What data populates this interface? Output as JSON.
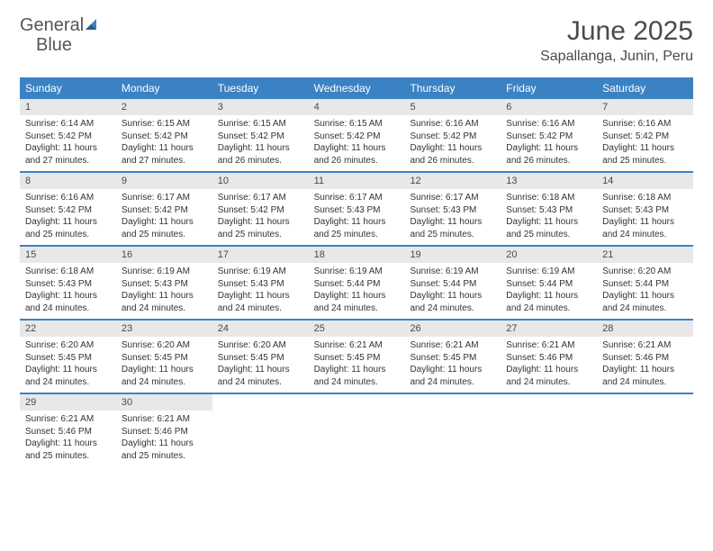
{
  "logo": {
    "text1": "General",
    "text2": "Blue"
  },
  "title": "June 2025",
  "subtitle": "Sapallanga, Junin, Peru",
  "colors": {
    "headerBlue": "#3b82c4",
    "dayNumBg": "#e8e8e8",
    "textGray": "#4a4a4a"
  },
  "dayNames": [
    "Sunday",
    "Monday",
    "Tuesday",
    "Wednesday",
    "Thursday",
    "Friday",
    "Saturday"
  ],
  "weeks": [
    [
      {
        "n": "1",
        "sr": "6:14 AM",
        "ss": "5:42 PM",
        "dl": "11 hours and 27 minutes."
      },
      {
        "n": "2",
        "sr": "6:15 AM",
        "ss": "5:42 PM",
        "dl": "11 hours and 27 minutes."
      },
      {
        "n": "3",
        "sr": "6:15 AM",
        "ss": "5:42 PM",
        "dl": "11 hours and 26 minutes."
      },
      {
        "n": "4",
        "sr": "6:15 AM",
        "ss": "5:42 PM",
        "dl": "11 hours and 26 minutes."
      },
      {
        "n": "5",
        "sr": "6:16 AM",
        "ss": "5:42 PM",
        "dl": "11 hours and 26 minutes."
      },
      {
        "n": "6",
        "sr": "6:16 AM",
        "ss": "5:42 PM",
        "dl": "11 hours and 26 minutes."
      },
      {
        "n": "7",
        "sr": "6:16 AM",
        "ss": "5:42 PM",
        "dl": "11 hours and 25 minutes."
      }
    ],
    [
      {
        "n": "8",
        "sr": "6:16 AM",
        "ss": "5:42 PM",
        "dl": "11 hours and 25 minutes."
      },
      {
        "n": "9",
        "sr": "6:17 AM",
        "ss": "5:42 PM",
        "dl": "11 hours and 25 minutes."
      },
      {
        "n": "10",
        "sr": "6:17 AM",
        "ss": "5:42 PM",
        "dl": "11 hours and 25 minutes."
      },
      {
        "n": "11",
        "sr": "6:17 AM",
        "ss": "5:43 PM",
        "dl": "11 hours and 25 minutes."
      },
      {
        "n": "12",
        "sr": "6:17 AM",
        "ss": "5:43 PM",
        "dl": "11 hours and 25 minutes."
      },
      {
        "n": "13",
        "sr": "6:18 AM",
        "ss": "5:43 PM",
        "dl": "11 hours and 25 minutes."
      },
      {
        "n": "14",
        "sr": "6:18 AM",
        "ss": "5:43 PM",
        "dl": "11 hours and 24 minutes."
      }
    ],
    [
      {
        "n": "15",
        "sr": "6:18 AM",
        "ss": "5:43 PM",
        "dl": "11 hours and 24 minutes."
      },
      {
        "n": "16",
        "sr": "6:19 AM",
        "ss": "5:43 PM",
        "dl": "11 hours and 24 minutes."
      },
      {
        "n": "17",
        "sr": "6:19 AM",
        "ss": "5:43 PM",
        "dl": "11 hours and 24 minutes."
      },
      {
        "n": "18",
        "sr": "6:19 AM",
        "ss": "5:44 PM",
        "dl": "11 hours and 24 minutes."
      },
      {
        "n": "19",
        "sr": "6:19 AM",
        "ss": "5:44 PM",
        "dl": "11 hours and 24 minutes."
      },
      {
        "n": "20",
        "sr": "6:19 AM",
        "ss": "5:44 PM",
        "dl": "11 hours and 24 minutes."
      },
      {
        "n": "21",
        "sr": "6:20 AM",
        "ss": "5:44 PM",
        "dl": "11 hours and 24 minutes."
      }
    ],
    [
      {
        "n": "22",
        "sr": "6:20 AM",
        "ss": "5:45 PM",
        "dl": "11 hours and 24 minutes."
      },
      {
        "n": "23",
        "sr": "6:20 AM",
        "ss": "5:45 PM",
        "dl": "11 hours and 24 minutes."
      },
      {
        "n": "24",
        "sr": "6:20 AM",
        "ss": "5:45 PM",
        "dl": "11 hours and 24 minutes."
      },
      {
        "n": "25",
        "sr": "6:21 AM",
        "ss": "5:45 PM",
        "dl": "11 hours and 24 minutes."
      },
      {
        "n": "26",
        "sr": "6:21 AM",
        "ss": "5:45 PM",
        "dl": "11 hours and 24 minutes."
      },
      {
        "n": "27",
        "sr": "6:21 AM",
        "ss": "5:46 PM",
        "dl": "11 hours and 24 minutes."
      },
      {
        "n": "28",
        "sr": "6:21 AM",
        "ss": "5:46 PM",
        "dl": "11 hours and 24 minutes."
      }
    ],
    [
      {
        "n": "29",
        "sr": "6:21 AM",
        "ss": "5:46 PM",
        "dl": "11 hours and 25 minutes."
      },
      {
        "n": "30",
        "sr": "6:21 AM",
        "ss": "5:46 PM",
        "dl": "11 hours and 25 minutes."
      },
      null,
      null,
      null,
      null,
      null
    ]
  ],
  "labels": {
    "sunrise": "Sunrise: ",
    "sunset": "Sunset: ",
    "daylight": "Daylight: "
  }
}
